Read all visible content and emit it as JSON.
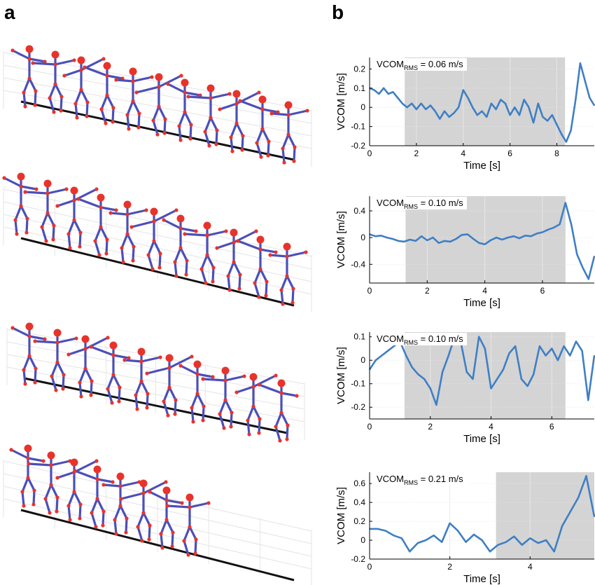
{
  "panel_labels": {
    "a": "a",
    "b": "b"
  },
  "figure_a": {
    "rows": [
      {
        "figures": 11
      },
      {
        "figures": 11
      },
      {
        "figures": 10
      },
      {
        "figures": 8
      }
    ]
  },
  "chart_data": [
    {
      "type": "line",
      "xlabel": "Time [s]",
      "ylabel": "VCOM [m/s]",
      "annotation_main": "VCOM",
      "annotation_sub": "RMS",
      "annotation_value": " = 0.06 m/s",
      "xlim": [
        0,
        9.6
      ],
      "ylim": [
        -0.2,
        0.26
      ],
      "xticks": [
        0,
        2,
        4,
        6,
        8
      ],
      "yticks": [
        -0.2,
        -0.1,
        0,
        0.1,
        0.2
      ],
      "yticklabels": [
        "-0.2",
        "-0.1",
        "0",
        "0.1",
        "0.2"
      ],
      "shaded": [
        1.5,
        8.35
      ],
      "color": "#3f7fc4",
      "shade_color": "#d4d4d4",
      "series": [
        {
          "x": [
            0,
            0.2,
            0.4,
            0.6,
            0.8,
            1.0,
            1.2,
            1.4,
            1.6,
            1.8,
            2.0,
            2.2,
            2.4,
            2.6,
            2.8,
            3.0,
            3.2,
            3.4,
            3.6,
            3.8,
            4.0,
            4.2,
            4.4,
            4.6,
            4.8,
            5.0,
            5.2,
            5.4,
            5.6,
            5.8,
            6.0,
            6.2,
            6.4,
            6.6,
            6.8,
            7.0,
            7.2,
            7.4,
            7.6,
            7.8,
            8.0,
            8.2,
            8.4,
            8.6,
            8.8,
            9.0,
            9.2,
            9.4,
            9.6
          ],
          "y": [
            0.1,
            0.09,
            0.07,
            0.1,
            0.07,
            0.08,
            0.05,
            0.02,
            0.0,
            0.02,
            -0.01,
            0.02,
            -0.01,
            0.01,
            -0.02,
            -0.06,
            -0.02,
            -0.05,
            -0.03,
            0.0,
            0.09,
            0.05,
            0.0,
            -0.04,
            -0.02,
            -0.05,
            0.02,
            -0.01,
            0.04,
            0.02,
            -0.04,
            0.0,
            -0.04,
            0.04,
            0.0,
            -0.08,
            0.02,
            -0.05,
            -0.07,
            -0.04,
            -0.09,
            -0.14,
            -0.18,
            -0.12,
            0.04,
            0.23,
            0.14,
            0.05,
            0.01
          ]
        }
      ]
    },
    {
      "type": "line",
      "xlabel": "Time [s]",
      "ylabel": "VCOM [m/s]",
      "annotation_main": "VCOM",
      "annotation_sub": "RMS",
      "annotation_value": " = 0.10 m/s",
      "xlim": [
        0,
        7.8
      ],
      "ylim": [
        -0.68,
        0.62
      ],
      "xticks": [
        0,
        2,
        4,
        6
      ],
      "yticks": [
        -0.4,
        0,
        0.4
      ],
      "yticklabels": [
        "-0.4",
        "0",
        "0.4"
      ],
      "shaded": [
        1.25,
        6.8
      ],
      "color": "#3f7fc4",
      "shade_color": "#d4d4d4",
      "series": [
        {
          "x": [
            0,
            0.2,
            0.4,
            0.6,
            0.8,
            1.0,
            1.2,
            1.4,
            1.6,
            1.8,
            2.0,
            2.2,
            2.4,
            2.6,
            2.8,
            3.0,
            3.2,
            3.4,
            3.6,
            3.8,
            4.0,
            4.2,
            4.4,
            4.6,
            4.8,
            5.0,
            5.2,
            5.4,
            5.6,
            5.8,
            6.0,
            6.2,
            6.4,
            6.6,
            6.8,
            7.0,
            7.2,
            7.4,
            7.6,
            7.8
          ],
          "y": [
            0.05,
            0.02,
            0.03,
            0.0,
            -0.02,
            -0.05,
            -0.06,
            -0.03,
            -0.05,
            0.02,
            -0.04,
            0.0,
            -0.08,
            -0.05,
            -0.06,
            -0.02,
            0.04,
            0.05,
            -0.02,
            -0.08,
            -0.1,
            -0.04,
            0.0,
            -0.03,
            0.0,
            0.02,
            -0.01,
            0.03,
            0.02,
            0.06,
            0.08,
            0.12,
            0.15,
            0.2,
            0.52,
            0.2,
            -0.25,
            -0.45,
            -0.62,
            -0.28
          ]
        }
      ]
    },
    {
      "type": "line",
      "xlabel": "Time [s]",
      "ylabel": "VCOM [m/s]",
      "annotation_main": "VCOM",
      "annotation_sub": "RMS",
      "annotation_value": " = 0.10 m/s",
      "xlim": [
        0,
        7.4
      ],
      "ylim": [
        -0.25,
        0.12
      ],
      "xticks": [
        0,
        2,
        4,
        6
      ],
      "yticks": [
        -0.2,
        -0.1,
        0,
        0.1
      ],
      "yticklabels": [
        "-0.2",
        "-0.1",
        "0",
        "0.1"
      ],
      "shaded": [
        1.15,
        6.45
      ],
      "color": "#3f7fc4",
      "shade_color": "#d4d4d4",
      "series": [
        {
          "x": [
            0,
            0.2,
            0.4,
            0.6,
            0.8,
            1.0,
            1.2,
            1.4,
            1.6,
            1.8,
            2.0,
            2.2,
            2.4,
            2.6,
            2.8,
            3.0,
            3.2,
            3.4,
            3.6,
            3.8,
            4.0,
            4.2,
            4.4,
            4.6,
            4.8,
            5.0,
            5.2,
            5.4,
            5.6,
            5.8,
            6.0,
            6.2,
            6.4,
            6.6,
            6.8,
            7.0,
            7.2,
            7.4
          ],
          "y": [
            -0.04,
            0.0,
            0.02,
            0.04,
            0.06,
            0.08,
            0.02,
            -0.03,
            -0.06,
            -0.08,
            -0.12,
            -0.19,
            -0.05,
            0.02,
            0.1,
            0.08,
            -0.05,
            -0.08,
            0.1,
            0.05,
            -0.12,
            -0.08,
            -0.04,
            0.03,
            0.06,
            -0.08,
            -0.11,
            -0.06,
            0.06,
            0.02,
            0.05,
            0.0,
            0.06,
            0.02,
            0.08,
            0.04,
            -0.17,
            0.02
          ]
        }
      ]
    },
    {
      "type": "line",
      "xlabel": "Time [s]",
      "ylabel": "VCOM [m/s]",
      "annotation_main": "VCOM",
      "annotation_sub": "RMS",
      "annotation_value": " = 0.21 m/s",
      "xlim": [
        0,
        5.6
      ],
      "ylim": [
        -0.2,
        0.72
      ],
      "xticks": [
        0,
        2,
        4
      ],
      "yticks": [
        -0.2,
        0,
        0.2,
        0.4,
        0.6
      ],
      "yticklabels": [
        "-0.2",
        "0",
        "0.2",
        "0.4",
        "0.6"
      ],
      "shaded": [
        3.15,
        5.6
      ],
      "color": "#3f7fc4",
      "shade_color": "#d4d4d4",
      "series": [
        {
          "x": [
            0,
            0.2,
            0.4,
            0.6,
            0.8,
            1.0,
            1.2,
            1.4,
            1.6,
            1.8,
            2.0,
            2.2,
            2.4,
            2.6,
            2.8,
            3.0,
            3.2,
            3.4,
            3.6,
            3.8,
            4.0,
            4.2,
            4.4,
            4.6,
            4.8,
            5.0,
            5.2,
            5.4,
            5.6
          ],
          "y": [
            0.12,
            0.12,
            0.1,
            0.05,
            0.02,
            -0.12,
            -0.03,
            0.0,
            0.05,
            -0.02,
            0.18,
            0.1,
            -0.02,
            0.06,
            0.0,
            -0.12,
            -0.05,
            -0.02,
            0.04,
            -0.05,
            0.02,
            -0.03,
            0.0,
            -0.12,
            0.15,
            0.3,
            0.45,
            0.68,
            0.25
          ]
        }
      ]
    }
  ]
}
